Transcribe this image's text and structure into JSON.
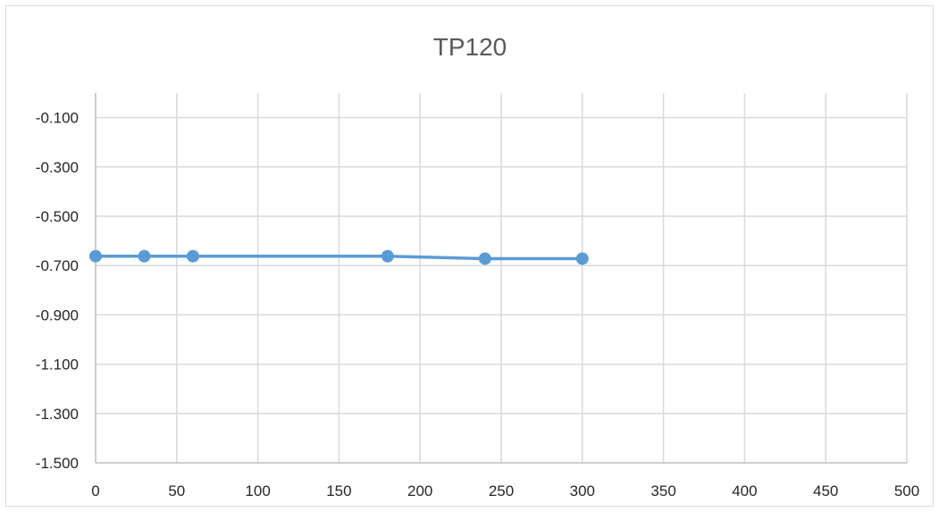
{
  "chart_data": {
    "type": "line",
    "title": "TP120",
    "xlabel": "",
    "ylabel": "",
    "xlim": [
      0,
      500
    ],
    "ylim": [
      -1.5,
      0
    ],
    "x_ticks": [
      0,
      50,
      100,
      150,
      200,
      250,
      300,
      350,
      400,
      450,
      500
    ],
    "x_tick_labels": [
      "0",
      "50",
      "100",
      "150",
      "200",
      "250",
      "300",
      "350",
      "400",
      "450",
      "500"
    ],
    "y_ticks": [
      -0.1,
      -0.3,
      -0.5,
      -0.7,
      -0.9,
      -1.1,
      -1.3,
      -1.5
    ],
    "y_tick_labels": [
      "-0.100",
      "-0.300",
      "-0.500",
      "-0.700",
      "-0.900",
      "-1.100",
      "-1.300",
      "-1.500"
    ],
    "grid": true,
    "legend": "none",
    "series": [
      {
        "color": "#5b9bd5",
        "marker": "circle",
        "points": [
          {
            "x": 0,
            "y": -0.662
          },
          {
            "x": 30,
            "y": -0.662
          },
          {
            "x": 60,
            "y": -0.662
          },
          {
            "x": 180,
            "y": -0.662
          },
          {
            "x": 240,
            "y": -0.672
          },
          {
            "x": 300,
            "y": -0.672
          }
        ]
      }
    ]
  }
}
